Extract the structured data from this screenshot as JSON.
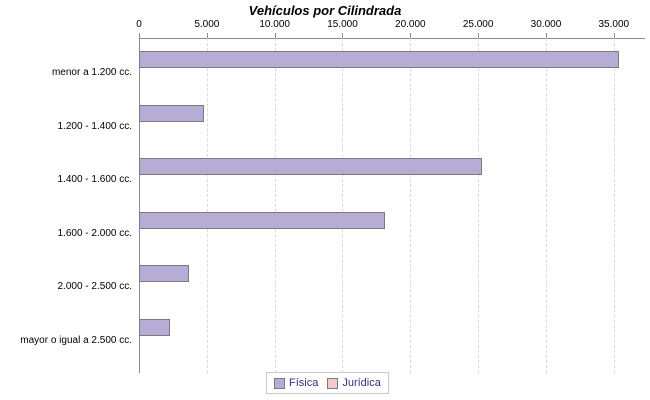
{
  "title": "Vehículos por Cilindrada",
  "x_axis": {
    "tick_labels": [
      "0",
      "5.000",
      "10.000",
      "15.000",
      "20.000",
      "25.000",
      "30.000",
      "35.000"
    ],
    "tick_values": [
      0,
      5000,
      10000,
      15000,
      20000,
      25000,
      30000,
      35000
    ]
  },
  "legend": {
    "items": [
      {
        "label": "Física",
        "color": "#b6acd6"
      },
      {
        "label": "Jurídica",
        "color": "#f6caca"
      }
    ]
  },
  "colors": {
    "bar_border": "#7b7b7b",
    "axis": "#8a8a8a",
    "grid": "#d9d9d9",
    "legend_text": "#37307f"
  },
  "chart_data": {
    "type": "bar",
    "orientation": "horizontal",
    "title": "Vehículos por Cilindrada",
    "categories": [
      "menor a 1.200 cc.",
      "1.200 - 1.400 cc.",
      "1.400 - 1.600 cc.",
      "1.600 - 2.000 cc.",
      "2.000 - 2.500 cc.",
      "mayor o igual a 2.500 cc."
    ],
    "series": [
      {
        "name": "Física",
        "color": "#b6acd6",
        "values": [
          35400,
          4800,
          25300,
          18100,
          3700,
          2300
        ]
      },
      {
        "name": "Jurídica",
        "color": "#f6caca",
        "values": [
          0,
          0,
          0,
          0,
          0,
          0
        ]
      }
    ],
    "xlim": [
      0,
      37300
    ],
    "xticks_interval": 5000,
    "grid": "vertical-dashed",
    "legend_position": "bottom",
    "axis_position": "top"
  }
}
